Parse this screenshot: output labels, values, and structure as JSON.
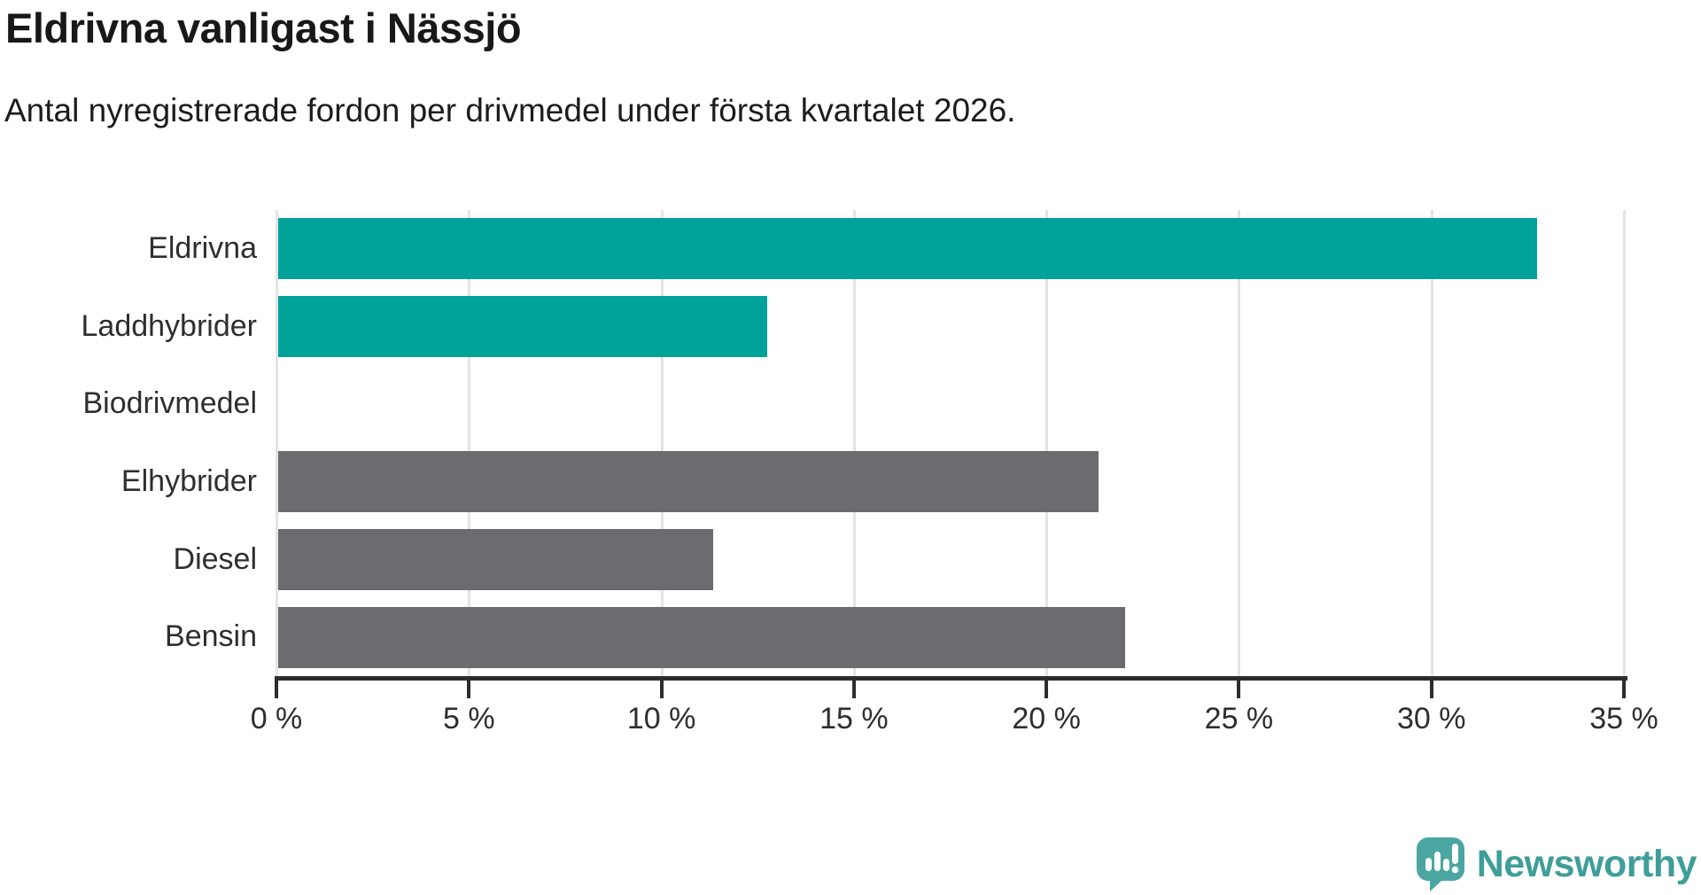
{
  "title": "Eldrivna vanligast i Nässjö",
  "subtitle": "Antal nyregistrerade fordon per drivmedel under första kvartalet 2026.",
  "branding": {
    "name": "Newsworthy",
    "icon": "newsworthy-speech-bubble-bar-chart-icon",
    "wordmark_color": "#3f9e99",
    "icon_color": "#4ba6a2"
  },
  "chart_data": {
    "type": "bar",
    "orientation": "horizontal",
    "title": "Eldrivna vanligast i Nässjö",
    "subtitle": "Antal nyregistrerade fordon per drivmedel under första kvartalet 2026.",
    "categories": [
      "Eldrivna",
      "Laddhybrider",
      "Biodrivmedel",
      "Elhybrider",
      "Diesel",
      "Bensin"
    ],
    "values": [
      32.7,
      12.7,
      0,
      21.3,
      11.3,
      22.0
    ],
    "unit": "%",
    "bar_colors": [
      "#00a29a",
      "#00a29a",
      "#00a29a",
      "#6c6c70",
      "#6c6c70",
      "#6c6c70"
    ],
    "highlight_color": "#00a29a",
    "default_color": "#6c6c70",
    "xlim": [
      0,
      35
    ],
    "x_ticks": [
      0,
      5,
      10,
      15,
      20,
      25,
      30,
      35
    ],
    "x_tick_labels": [
      "0 %",
      "5 %",
      "10 %",
      "15 %",
      "20 %",
      "25 %",
      "30 %",
      "35 %"
    ],
    "grid": true,
    "gridline_color": "#e4e4e4",
    "axis_color": "#2d2d2d",
    "xlabel": "",
    "ylabel": ""
  }
}
